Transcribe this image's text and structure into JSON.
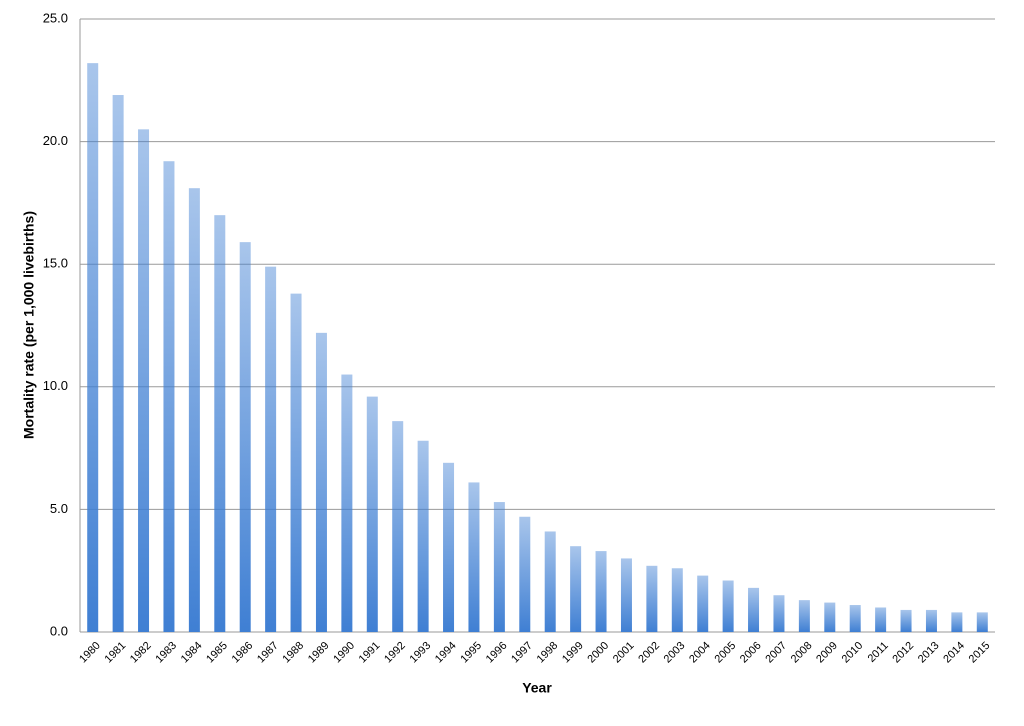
{
  "chart_data": {
    "type": "bar",
    "x_label": "Year",
    "y_label": "Mortality rate (per 1,000 livebirths)",
    "categories": [
      "1980",
      "1981",
      "1982",
      "1983",
      "1984",
      "1985",
      "1986",
      "1987",
      "1988",
      "1989",
      "1990",
      "1991",
      "1992",
      "1993",
      "1994",
      "1995",
      "1996",
      "1997",
      "1998",
      "1999",
      "2000",
      "2001",
      "2002",
      "2003",
      "2004",
      "2005",
      "2006",
      "2007",
      "2008",
      "2009",
      "2010",
      "2011",
      "2012",
      "2013",
      "2014",
      "2015"
    ],
    "values": [
      23.2,
      21.9,
      20.5,
      19.2,
      18.1,
      17.0,
      15.9,
      14.9,
      13.8,
      12.2,
      10.5,
      9.6,
      8.6,
      7.8,
      6.9,
      6.1,
      5.3,
      4.7,
      4.1,
      3.5,
      3.3,
      3.0,
      2.7,
      2.6,
      2.3,
      2.1,
      1.8,
      1.5,
      1.3,
      1.2,
      1.1,
      1.0,
      0.9,
      0.9,
      0.8,
      0.8
    ],
    "color": "#3f7fd3",
    "ylim": [
      0,
      25
    ],
    "yticks": [
      {
        "value": 0,
        "label": "0.0"
      },
      {
        "value": 5,
        "label": "5.0"
      },
      {
        "value": 10,
        "label": "10.0"
      },
      {
        "value": 15,
        "label": "15.0"
      },
      {
        "value": 20,
        "label": "20.0"
      },
      {
        "value": 25,
        "label": "25.0"
      }
    ],
    "grid": true
  }
}
